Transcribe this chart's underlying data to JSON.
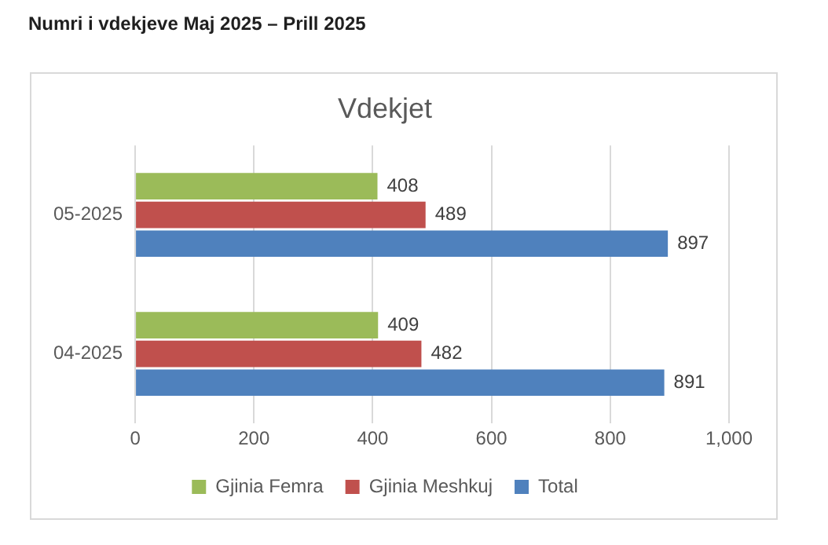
{
  "chart_data": {
    "type": "bar",
    "title": "Numri i vdekjeve  Maj 2025 – Prill 2025",
    "subtitle": "Vdekjet",
    "orientation": "horizontal",
    "categories": [
      "05-2025",
      "04-2025"
    ],
    "series": [
      {
        "name": "Gjinia Femra",
        "color": "#9bbb59",
        "values": [
          408,
          409
        ]
      },
      {
        "name": "Gjinia Meshkuj",
        "color": "#c0504d",
        "values": [
          489,
          482
        ]
      },
      {
        "name": "Total",
        "color": "#4f81bd",
        "values": [
          897,
          891
        ]
      }
    ],
    "xlim": [
      0,
      1000
    ],
    "xticks": [
      0,
      200,
      400,
      600,
      800,
      {
        "value": 1000,
        "label": "1,000"
      }
    ],
    "grid": "x",
    "legend": "bottom",
    "data_labels": true
  }
}
